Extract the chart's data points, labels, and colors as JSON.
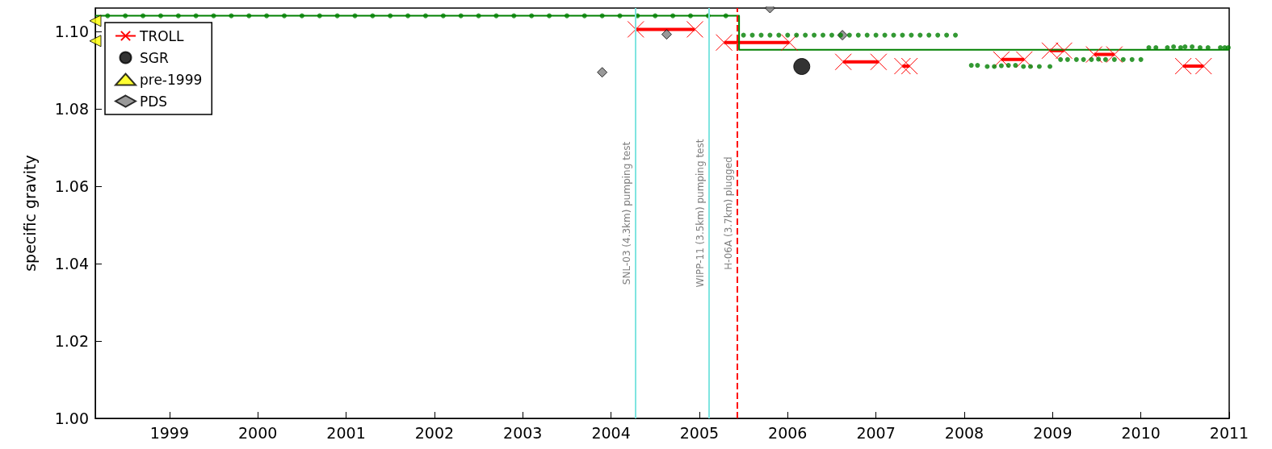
{
  "chart_data": {
    "type": "scatter",
    "ylabel": "specific gravity",
    "xlim": [
      1998.16,
      2011
    ],
    "ylim": [
      1.0,
      1.106
    ],
    "xticks": [
      1999,
      2000,
      2001,
      2002,
      2003,
      2004,
      2005,
      2006,
      2007,
      2008,
      2009,
      2010,
      2011
    ],
    "yticks": [
      {
        "value": 1.0,
        "label": "1.00"
      },
      {
        "value": 1.02,
        "label": "1.02"
      },
      {
        "value": 1.04,
        "label": "1.04"
      },
      {
        "value": 1.06,
        "label": "1.06"
      },
      {
        "value": 1.08,
        "label": "1.08"
      },
      {
        "value": 1.1,
        "label": "1.10"
      }
    ],
    "grid": false,
    "legend": "top left",
    "ref_lines": [
      {
        "axis": "x",
        "value": 2004.28,
        "label": "SNL-03 (4.3km) pumping test",
        "color": "#7fe5e0",
        "line_style": "solid"
      },
      {
        "axis": "x",
        "value": 2005.11,
        "label": "WIPP-11 (3.5km) pumping test",
        "color": "#7fe5e0",
        "line_style": "solid"
      },
      {
        "axis": "x",
        "value": 2005.43,
        "label": "H-06A (3.7km) plugged",
        "color": "#ff0000",
        "line_style": "dashed"
      }
    ],
    "series": [
      {
        "name": "TROLL",
        "type": "line",
        "marker": "cross",
        "color": "#ff0000",
        "x": [
          2004.28,
          2004.95,
          null,
          2005.28,
          2006.02,
          null,
          2006.63,
          2007.03,
          null,
          2007.3,
          2007.38,
          null,
          2008.42,
          2008.68,
          null,
          2008.97,
          2009.13,
          null,
          2009.47,
          2009.7,
          null,
          2010.48,
          2010.71
        ],
        "values": [
          1.1005,
          1.1005,
          null,
          1.0971,
          1.0971,
          null,
          1.0921,
          1.0921,
          null,
          1.091,
          1.091,
          null,
          1.0927,
          1.0927,
          null,
          1.095,
          1.095,
          null,
          1.094,
          1.094,
          null,
          1.091,
          1.091
        ]
      },
      {
        "name": "SGR",
        "marker": "circle",
        "color": "#000000",
        "x": [
          2006.16
        ],
        "values": [
          1.0909
        ]
      },
      {
        "name": "pre-1999",
        "marker": "triangle",
        "color": "#ffff00",
        "x": [
          1998.16,
          1998.16
        ],
        "values": [
          1.1027,
          1.0975
        ]
      },
      {
        "name": "PDS",
        "marker": "diamond",
        "color": "#808080",
        "x": [
          2003.9,
          2004.63,
          2005.8,
          2006.62
        ],
        "values": [
          1.0894,
          1.0992,
          1.106,
          1.099
        ]
      },
      {
        "type": "line",
        "marker": "none",
        "color": "#008000",
        "x": [
          1998.16,
          2005.45,
          2005.45,
          2011
        ],
        "values": [
          1.104,
          1.104,
          1.0952,
          1.0952
        ]
      },
      {
        "marker": "circle",
        "color": "#008000",
        "x": [
          1998.3,
          1998.5,
          1998.7,
          1998.9,
          1999.1,
          1999.3,
          1999.5,
          1999.7,
          1999.9,
          2000.1,
          2000.3,
          2000.5,
          2000.7,
          2000.9,
          2001.1,
          2001.3,
          2001.5,
          2001.7,
          2001.9,
          2002.1,
          2002.3,
          2002.5,
          2002.7,
          2002.9,
          2003.1,
          2003.3,
          2003.5,
          2003.7,
          2003.9,
          2004.1,
          2004.3,
          2004.5,
          2004.7,
          2004.9,
          2005.1,
          2005.3,
          2005.5,
          2005.6,
          2005.7,
          2005.8,
          2005.9,
          2006.0,
          2006.1,
          2006.2,
          2006.3,
          2006.4,
          2006.5,
          2006.6,
          2006.7,
          2006.8,
          2006.9,
          2007.0,
          2007.1,
          2007.2,
          2007.3,
          2007.4,
          2007.5,
          2007.6,
          2007.7,
          2007.8,
          2007.9,
          2008.08,
          2008.15,
          2008.26,
          2008.34,
          2008.42,
          2008.5,
          2008.58,
          2008.67,
          2008.75,
          2008.85,
          2008.97,
          2009.09,
          2009.17,
          2009.27,
          2009.35,
          2009.44,
          2009.52,
          2009.6,
          2009.7,
          2009.8,
          2009.9,
          2010.0,
          2010.09,
          2010.17,
          2010.3,
          2010.37,
          2010.45,
          2010.5,
          2010.58,
          2010.67,
          2010.76,
          2010.9,
          2010.95,
          2010.99
        ],
        "values": [
          1.104,
          1.104,
          1.104,
          1.104,
          1.104,
          1.104,
          1.104,
          1.104,
          1.104,
          1.104,
          1.104,
          1.104,
          1.104,
          1.104,
          1.104,
          1.104,
          1.104,
          1.104,
          1.104,
          1.104,
          1.104,
          1.104,
          1.104,
          1.104,
          1.104,
          1.104,
          1.104,
          1.104,
          1.104,
          1.104,
          1.104,
          1.104,
          1.104,
          1.104,
          1.104,
          1.104,
          1.099,
          1.099,
          1.099,
          1.099,
          1.099,
          1.099,
          1.099,
          1.099,
          1.099,
          1.099,
          1.099,
          1.099,
          1.099,
          1.099,
          1.099,
          1.099,
          1.099,
          1.099,
          1.099,
          1.099,
          1.099,
          1.099,
          1.099,
          1.099,
          1.099,
          1.0912,
          1.0912,
          1.0909,
          1.0909,
          1.0911,
          1.0912,
          1.0912,
          1.0909,
          1.0909,
          1.0909,
          1.0909,
          1.0927,
          1.0927,
          1.0927,
          1.0927,
          1.0927,
          1.0928,
          1.0927,
          1.0927,
          1.0927,
          1.0927,
          1.0927,
          1.0958,
          1.0958,
          1.0958,
          1.096,
          1.0958,
          1.096,
          1.096,
          1.0958,
          1.0958,
          1.0958,
          1.0958,
          1.0958
        ]
      }
    ]
  }
}
